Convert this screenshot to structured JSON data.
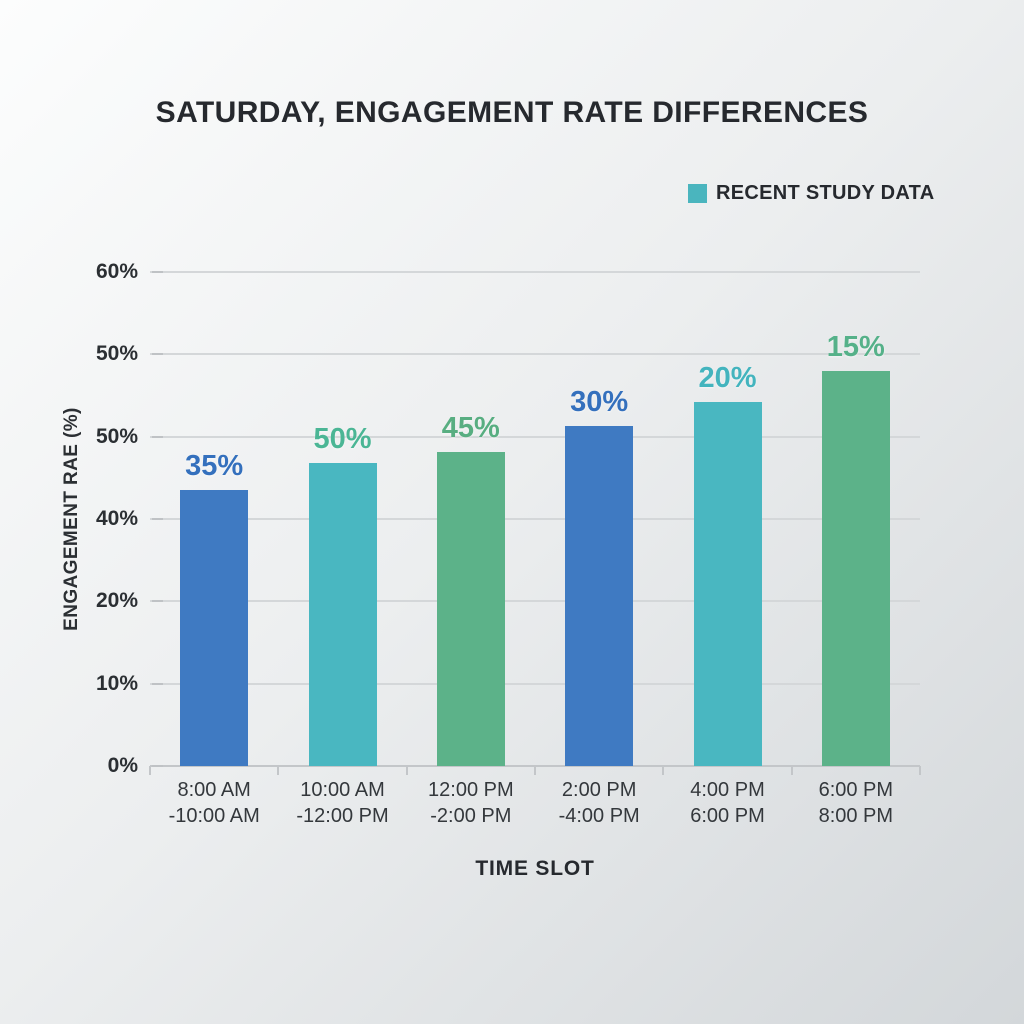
{
  "page": {
    "background_top_left_color": "#fcfdfd",
    "background_bottom_right_color": "#d3d7da"
  },
  "chart_data": {
    "type": "bar",
    "title": "SATURDAY, ENGAGEMENT RATE DIFFERENCES",
    "legend": {
      "label": "RECENT STUDY DATA",
      "swatch_color": "#4ab5be",
      "position": "top-right"
    },
    "x_axis": {
      "label": "TIME SLOT",
      "categories": [
        [
          "8:00 AM",
          "-10:00 AM"
        ],
        [
          "10:00 AM",
          "-12:00 PM"
        ],
        [
          "12:00 PM",
          "-2:00 PM"
        ],
        [
          "2:00 PM",
          "-4:00 PM"
        ],
        [
          "4:00 PM",
          "6:00 PM"
        ],
        [
          "6:00 PM",
          "8:00 PM"
        ]
      ]
    },
    "y_axis": {
      "label": "ENGAGEMENT RAE (%)",
      "tick_labels": [
        "60%",
        "50%",
        "50%",
        "40%",
        "20%",
        "10%",
        "0%"
      ],
      "grid": true
    },
    "series": [
      {
        "name": "RECENT STUDY DATA",
        "values": [
          35,
          50,
          45,
          30,
          20,
          15
        ],
        "unit": "%"
      }
    ],
    "bars": [
      {
        "category_line1": "8:00 AM",
        "category_line2": "-10:00 AM",
        "value": 35,
        "value_label": "35%",
        "bar_color": "#3f7ac2",
        "value_label_color": "#3470bd",
        "displayed_height_frac": 0.559
      },
      {
        "category_line1": "10:00 AM",
        "category_line2": "-12:00 PM",
        "value": 50,
        "value_label": "50%",
        "bar_color": "#49b7c1",
        "value_label_color": "#4bb695",
        "displayed_height_frac": 0.613
      },
      {
        "category_line1": "12:00 PM",
        "category_line2": "-2:00 PM",
        "value": 45,
        "value_label": "45%",
        "bar_color": "#5cb289",
        "value_label_color": "#58ae81",
        "displayed_height_frac": 0.636
      },
      {
        "category_line1": "2:00 PM",
        "category_line2": "-4:00 PM",
        "value": 30,
        "value_label": "30%",
        "bar_color": "#3f7ac2",
        "value_label_color": "#3470bd",
        "displayed_height_frac": 0.688
      },
      {
        "category_line1": "4:00 PM",
        "category_line2": "6:00 PM",
        "value": 20,
        "value_label": "20%",
        "bar_color": "#49b7c1",
        "value_label_color": "#43b4be",
        "displayed_height_frac": 0.737
      },
      {
        "category_line1": "6:00 PM",
        "category_line2": "8:00 PM",
        "value": 15,
        "value_label": "15%",
        "bar_color": "#5cb289",
        "value_label_color": "#55b189",
        "displayed_height_frac": 0.8
      }
    ]
  }
}
